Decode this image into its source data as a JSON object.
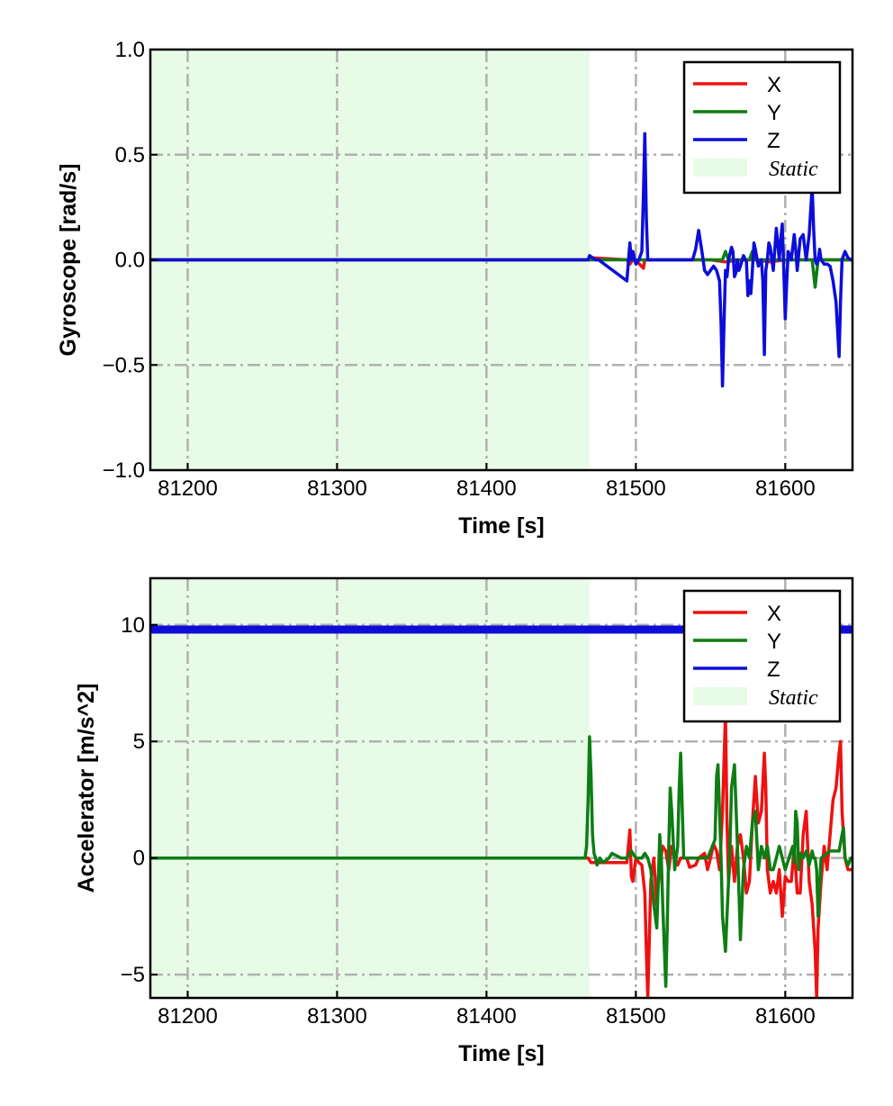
{
  "chart_data": [
    {
      "type": "line",
      "title": "",
      "xlabel": "Time [s]",
      "ylabel": "Gyroscope [rad/s]",
      "xlim": [
        81175,
        81645
      ],
      "ylim": [
        -1.0,
        1.0
      ],
      "xticks": [
        81200,
        81300,
        81400,
        81500,
        81600
      ],
      "xtick_labels": [
        "81200",
        "81300",
        "81400",
        "81500",
        "81600"
      ],
      "yticks": [
        -1.0,
        -0.5,
        0.0,
        0.5,
        1.0
      ],
      "ytick_labels": [
        "−1.0",
        "−0.5",
        "0.0",
        "0.5",
        "1.0"
      ],
      "grid": true,
      "legend_position": "top-right",
      "shaded_region": {
        "label": "Static",
        "x_start": 81175,
        "x_end": 81469,
        "color": "#e8fbe6"
      },
      "series": [
        {
          "name": "X",
          "color": "#ee1111",
          "x": [
            81175,
            81469,
            81471,
            81494,
            81496,
            81498,
            81501,
            81505,
            81506,
            81507,
            81540,
            81550,
            81560,
            81570,
            81580,
            81590,
            81600,
            81610,
            81620,
            81630,
            81640,
            81644
          ],
          "y": [
            0.0,
            0.0,
            0.01,
            0.0,
            -0.02,
            0.0,
            -0.01,
            -0.04,
            0.0,
            0.0,
            0.0,
            0.0,
            -0.01,
            0.0,
            0.0,
            -0.01,
            0.0,
            0.0,
            0.0,
            0.0,
            0.0,
            0.0
          ]
        },
        {
          "name": "Y",
          "color": "#0e7d14",
          "x": [
            81175,
            81540,
            81550,
            81558,
            81560,
            81562,
            81570,
            81576,
            81578,
            81580,
            81600,
            81618,
            81620,
            81622,
            81624,
            81640,
            81644
          ],
          "y": [
            0.0,
            0.0,
            0.0,
            0.0,
            0.04,
            0.0,
            0.0,
            0.0,
            0.04,
            0.0,
            0.0,
            0.0,
            -0.13,
            0.0,
            0.0,
            0.0,
            0.0
          ]
        },
        {
          "name": "Z",
          "color": "#0d0dd9",
          "x": [
            81175,
            81468,
            81469,
            81471,
            81473,
            81475,
            81494,
            81496,
            81497,
            81498,
            81500,
            81502,
            81504,
            81505,
            81506,
            81507,
            81508,
            81510,
            81512,
            81520,
            81530,
            81538,
            81540,
            81542,
            81544,
            81546,
            81548,
            81550,
            81552,
            81554,
            81556,
            81557,
            81558,
            81559,
            81560,
            81561,
            81562,
            81564,
            81565,
            81566,
            81567,
            81568,
            81569,
            81570,
            81572,
            81574,
            81575,
            81576,
            81577,
            81578,
            81579,
            81580,
            81582,
            81584,
            81585,
            81586,
            81587,
            81588,
            81589,
            81590,
            81592,
            81594,
            81596,
            81597,
            81598,
            81599,
            81600,
            81601,
            81602,
            81604,
            81606,
            81607,
            81608,
            81610,
            81612,
            81614,
            81616,
            81618,
            81619,
            81620,
            81621,
            81622,
            81623,
            81624,
            81626,
            81628,
            81630,
            81632,
            81634,
            81636,
            81637,
            81638,
            81639,
            81640,
            81642,
            81644
          ],
          "y": [
            0.0,
            0.0,
            0.02,
            0.01,
            0.0,
            0.0,
            -0.1,
            0.08,
            0.0,
            0.04,
            -0.02,
            0.0,
            0.04,
            0.3,
            0.6,
            0.2,
            0.0,
            0.0,
            0.0,
            0.0,
            0.0,
            0.0,
            0.05,
            0.14,
            0.05,
            -0.05,
            -0.07,
            -0.05,
            -0.03,
            -0.05,
            -0.1,
            -0.3,
            -0.6,
            -0.3,
            -0.05,
            -0.08,
            0.0,
            0.06,
            0.04,
            -0.08,
            -0.06,
            0.0,
            -0.05,
            -0.03,
            0.02,
            -0.01,
            -0.17,
            -0.1,
            -0.16,
            -0.05,
            0.08,
            0.05,
            -0.03,
            0.0,
            -0.1,
            -0.45,
            -0.05,
            0.0,
            0.08,
            0.06,
            -0.05,
            0.15,
            0.0,
            0.1,
            0.17,
            -0.05,
            -0.28,
            -0.1,
            0.04,
            0.0,
            0.12,
            0.05,
            -0.05,
            0.1,
            0.12,
            0.0,
            0.12,
            0.35,
            0.14,
            0.0,
            -0.02,
            0.0,
            0.05,
            0.0,
            -0.02,
            -0.02,
            -0.03,
            -0.1,
            -0.2,
            -0.46,
            -0.2,
            0.0,
            0.02,
            0.04,
            0.01,
            0.0
          ]
        }
      ]
    },
    {
      "type": "line",
      "title": "",
      "xlabel": "Time [s]",
      "ylabel": "Accelerator [m/s^2]",
      "xlim": [
        81175,
        81645
      ],
      "ylim": [
        -6,
        12
      ],
      "xticks": [
        81200,
        81300,
        81400,
        81500,
        81600
      ],
      "xtick_labels": [
        "81200",
        "81300",
        "81400",
        "81500",
        "81600"
      ],
      "yticks": [
        -5,
        0,
        5,
        10
      ],
      "ytick_labels": [
        "−5",
        "0",
        "5",
        "10"
      ],
      "grid": true,
      "legend_position": "top-right",
      "shaded_region": {
        "label": "Static",
        "x_start": 81175,
        "x_end": 81469,
        "color": "#e8fbe6"
      },
      "series": [
        {
          "name": "X",
          "color": "#ee1111",
          "x": [
            81175,
            81468,
            81470,
            81494,
            81496,
            81497,
            81498,
            81500,
            81502,
            81504,
            81506,
            81507,
            81508,
            81509,
            81510,
            81512,
            81514,
            81516,
            81518,
            81520,
            81522,
            81524,
            81526,
            81528,
            81530,
            81534,
            81536,
            81540,
            81542,
            81546,
            81548,
            81550,
            81552,
            81554,
            81556,
            81558,
            81560,
            81561,
            81562,
            81564,
            81566,
            81568,
            81570,
            81572,
            81574,
            81576,
            81578,
            81580,
            81582,
            81584,
            81586,
            81587,
            81588,
            81590,
            81592,
            81594,
            81596,
            81598,
            81600,
            81602,
            81604,
            81606,
            81608,
            81610,
            81612,
            81614,
            81616,
            81618,
            81620,
            81621,
            81622,
            81624,
            81626,
            81628,
            81630,
            81632,
            81634,
            81636,
            81637,
            81638,
            81640,
            81642,
            81644
          ],
          "y": [
            0.0,
            0.0,
            -0.2,
            -0.2,
            1.2,
            -0.8,
            -1.0,
            0.0,
            -0.2,
            -0.3,
            -1.5,
            -4.0,
            -6.0,
            -3.5,
            -1.0,
            0.0,
            -2.0,
            -0.3,
            0.5,
            0.3,
            -0.5,
            0.5,
            0.0,
            -0.3,
            0.0,
            0.0,
            -0.4,
            -0.3,
            0.0,
            0.2,
            -0.5,
            0.0,
            0.6,
            0.3,
            -0.5,
            2.0,
            6.2,
            1.5,
            -1.0,
            0.5,
            -1.0,
            0.5,
            1.0,
            0.0,
            -1.5,
            -1.0,
            1.5,
            3.5,
            1.5,
            2.0,
            4.5,
            3.0,
            -0.5,
            -1.5,
            -1.0,
            -1.5,
            -0.5,
            -2.5,
            -0.8,
            -1.0,
            -1.0,
            0.5,
            -1.5,
            -1.5,
            1.0,
            2.0,
            -1.0,
            -2.0,
            -4.0,
            -6.0,
            -3.0,
            -1.0,
            0.5,
            -0.5,
            1.0,
            2.5,
            3.0,
            4.5,
            5.0,
            2.0,
            0.0,
            -0.5,
            -0.5
          ]
        },
        {
          "name": "Y",
          "color": "#0e7d14",
          "x": [
            81175,
            81466,
            81467,
            81468,
            81469,
            81470,
            81471,
            81472,
            81473,
            81474,
            81476,
            81478,
            81482,
            81484,
            81490,
            81494,
            81497,
            81500,
            81504,
            81506,
            81508,
            81510,
            81512,
            81514,
            81515,
            81516,
            81517,
            81518,
            81520,
            81521,
            81522,
            81523,
            81524,
            81526,
            81528,
            81529,
            81530,
            81532,
            81540,
            81548,
            81550,
            81553,
            81554,
            81555,
            81556,
            81557,
            81558,
            81560,
            81562,
            81563,
            81564,
            81566,
            81568,
            81569,
            81570,
            81571,
            81572,
            81574,
            81576,
            81578,
            81580,
            81582,
            81584,
            81586,
            81588,
            81590,
            81592,
            81596,
            81600,
            81605,
            81606,
            81607,
            81608,
            81609,
            81610,
            81612,
            81614,
            81616,
            81618,
            81619,
            81620,
            81621,
            81622,
            81624,
            81630,
            81636,
            81638,
            81639,
            81640,
            81642,
            81644
          ],
          "y": [
            0.0,
            0.0,
            0.5,
            2.5,
            5.2,
            3.5,
            1.0,
            0.2,
            0.0,
            -0.3,
            0.0,
            -0.2,
            0.0,
            0.2,
            0.0,
            0.0,
            0.3,
            0.0,
            0.0,
            0.2,
            0.0,
            -0.5,
            -2.0,
            -3.0,
            -1.0,
            1.0,
            0.0,
            -2.0,
            -5.5,
            -3.0,
            0.5,
            3.0,
            2.0,
            -0.5,
            0.5,
            3.0,
            4.5,
            0.0,
            0.0,
            0.0,
            0.3,
            0.8,
            3.5,
            4.0,
            2.0,
            0.0,
            -2.5,
            -4.0,
            -1.0,
            0.5,
            3.0,
            4.0,
            0.5,
            -1.5,
            -3.5,
            -2.0,
            -0.5,
            0.5,
            0.0,
            1.5,
            2.0,
            -0.5,
            0.5,
            0.0,
            0.5,
            -0.5,
            -0.5,
            0.5,
            -0.5,
            0.5,
            -0.2,
            2.0,
            1.5,
            -0.5,
            0.2,
            0.0,
            0.3,
            -0.3,
            0.3,
            0.0,
            0.0,
            -0.5,
            -2.5,
            0.0,
            0.3,
            0.3,
            1.0,
            1.3,
            0.0,
            -0.3,
            0.0
          ]
        },
        {
          "name": "Z",
          "color": "#0d0dd9",
          "x": [
            81175,
            81644
          ],
          "y": [
            9.8,
            9.8
          ]
        }
      ]
    }
  ]
}
